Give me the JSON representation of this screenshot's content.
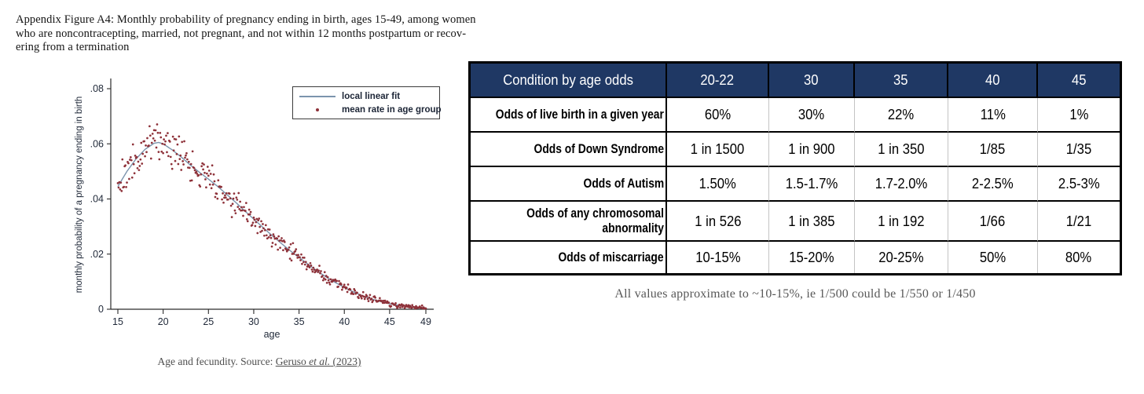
{
  "figure": {
    "caption_lines": [
      "Appendix Figure A4: Monthly probability of pregnancy ending in birth, ages 15-49, among women",
      "who are noncontracepting, married, not pregnant, and not within 12 months postpartum or recov-",
      "ering from a termination"
    ],
    "source": {
      "prefix": "Age and fecundity. Source: ",
      "link_name": "Geruso ",
      "link_etal": "et al.",
      "link_year": " (2023)"
    }
  },
  "chart_data": [
    {
      "type": "scatter",
      "title": "Monthly probability of pregnancy ending in birth by age",
      "xlabel": "age",
      "ylabel": "monthly probability of a pregnancy ending in birth",
      "xlim": [
        15,
        49
      ],
      "ylim": [
        0,
        0.08
      ],
      "x_ticks": [
        15,
        20,
        25,
        30,
        35,
        40,
        45,
        49
      ],
      "y_ticks": [
        0,
        0.02,
        0.04,
        0.06,
        0.08
      ],
      "y_tick_labels": [
        "0",
        ".02",
        ".04",
        ".06",
        ".08"
      ],
      "grid": false,
      "legend_position": "top-right",
      "legend": [
        {
          "label": "local linear fit",
          "type": "line"
        },
        {
          "label": "mean rate in age group",
          "type": "dot"
        }
      ],
      "colors": {
        "line": "#7b94ad",
        "dot": "#8e3139",
        "axis": "#2b2b2b",
        "text": "#1f2838"
      },
      "fit_anchors": {
        "ages": [
          15,
          16,
          17,
          18,
          19,
          19.5,
          20,
          21,
          22,
          23,
          24,
          25,
          26,
          27,
          28,
          29,
          30,
          31,
          32,
          33,
          34,
          35,
          36,
          37,
          38,
          39,
          40,
          41,
          42,
          43,
          44,
          45,
          46,
          47,
          48,
          49
        ],
        "values": [
          0.0445,
          0.05,
          0.0545,
          0.058,
          0.0602,
          0.0605,
          0.06,
          0.0578,
          0.0552,
          0.0523,
          0.0497,
          0.0472,
          0.0446,
          0.0417,
          0.0388,
          0.0357,
          0.0327,
          0.0297,
          0.0268,
          0.024,
          0.0213,
          0.0188,
          0.0163,
          0.0139,
          0.0117,
          0.0097,
          0.0079,
          0.0063,
          0.0049,
          0.0037,
          0.0028,
          0.002,
          0.0014,
          0.001,
          0.0007,
          0.0005
        ]
      },
      "scatter": {
        "points_per_year": 12,
        "seed": 20,
        "noise_base": 0.0004,
        "noise_scale": 0.05,
        "outlier_prob": 0.045,
        "outlier_boost": 0.006
      }
    },
    {
      "type": "table",
      "columns": [
        "Condition by age odds",
        "20-22",
        "30",
        "35",
        "40",
        "45"
      ],
      "rows": [
        [
          "Odds of live birth in a given year",
          "60%",
          "30%",
          "22%",
          "11%",
          "1%"
        ],
        [
          "Odds of Down Syndrome",
          "1 in 1500",
          "1 in 900",
          "1 in 350",
          "1/85",
          "1/35"
        ],
        [
          "Odds of Autism",
          "1.50%",
          "1.5-1.7%",
          "1.7-2.0%",
          "2-2.5%",
          "2.5-3%"
        ],
        [
          "Odds of any chromosomal abnormality",
          "1 in 526",
          "1 in 385",
          "1 in 192",
          "1/66",
          "1/21"
        ],
        [
          "Odds of miscarriage",
          "10-15%",
          "15-20%",
          "20-25%",
          "50%",
          "80%"
        ]
      ],
      "footnote": "All values approximate to ~10-15%, ie 1/500 could be 1/550 or 1/450",
      "colors": {
        "header_bg": "#1f3864",
        "header_text": "#ffffff",
        "border": "#000000",
        "divider_light": "#c4c4c4"
      }
    }
  ]
}
